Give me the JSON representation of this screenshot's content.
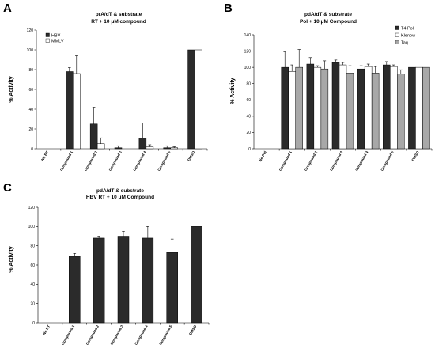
{
  "colors": {
    "dark": "#2b2b2b",
    "white": "#ffffff",
    "gray": "#a8a8a8"
  },
  "chart_data": [
    {
      "id": "A",
      "type": "bar",
      "panel_label": "A",
      "title_lines": [
        "prA/dT & substrate",
        "RT + 10 μM compound"
      ],
      "ylabel": "% Activity",
      "ylim": [
        0,
        120
      ],
      "yticks": [
        0,
        20,
        40,
        60,
        80,
        100,
        120
      ],
      "categories": [
        "No RT",
        "Compound 1",
        "Compound 2",
        "Compound 3",
        "Compound 4",
        "Compound 5",
        "DMSO"
      ],
      "legend_position": "top-left",
      "series": [
        {
          "name": "HBV",
          "color": "dark",
          "values": [
            0,
            78,
            25,
            1,
            11,
            1,
            100
          ],
          "errors": [
            0,
            4,
            17,
            2,
            15,
            2,
            0
          ]
        },
        {
          "name": "MMLV",
          "color": "white",
          "values": [
            0,
            76,
            5,
            0,
            2,
            1,
            100
          ],
          "errors": [
            0,
            18,
            6,
            0,
            2,
            1,
            0
          ]
        }
      ]
    },
    {
      "id": "B",
      "type": "bar",
      "panel_label": "B",
      "title_lines": [
        "pdA/dT & substrate",
        "Pol + 10 μM Compound"
      ],
      "ylabel": "% Activity",
      "ylim": [
        0,
        140
      ],
      "yticks": [
        0,
        20,
        40,
        60,
        80,
        100,
        120,
        140
      ],
      "categories": [
        "No Pol",
        "Compound 1",
        "Compound 2",
        "Compound 3",
        "Compound 4",
        "Compound 5",
        "DMSO"
      ],
      "legend_position": "top-right",
      "series": [
        {
          "name": "T4 Pol",
          "color": "dark",
          "values": [
            0,
            100,
            104,
            106,
            98,
            103,
            100
          ],
          "errors": [
            0,
            19,
            8,
            3,
            4,
            4,
            0
          ]
        },
        {
          "name": "Klenow",
          "color": "white",
          "values": [
            0,
            95,
            100,
            103,
            101,
            101,
            100
          ],
          "errors": [
            0,
            8,
            2,
            3,
            3,
            2,
            0
          ]
        },
        {
          "name": "Taq",
          "color": "gray",
          "values": [
            0,
            100,
            98,
            93,
            93,
            92,
            100
          ],
          "errors": [
            0,
            22,
            10,
            9,
            8,
            5,
            0
          ]
        }
      ]
    },
    {
      "id": "C",
      "type": "bar",
      "panel_label": "C",
      "title_lines": [
        "pdA/dT & substrate",
        "HBV RT + 10 μM Compound"
      ],
      "ylabel": "% Activity",
      "ylim": [
        0,
        120
      ],
      "yticks": [
        0,
        20,
        40,
        60,
        80,
        100,
        120
      ],
      "categories": [
        "No RT",
        "Compound 1",
        "Compound 2",
        "Compound 3",
        "Compound 4",
        "Compound 5",
        "DMSO"
      ],
      "legend_position": "none",
      "series": [
        {
          "name": "",
          "color": "dark",
          "values": [
            0,
            69,
            88,
            90,
            88,
            73,
            100
          ],
          "errors": [
            0,
            3,
            2,
            5,
            12,
            14,
            0
          ]
        }
      ]
    }
  ]
}
